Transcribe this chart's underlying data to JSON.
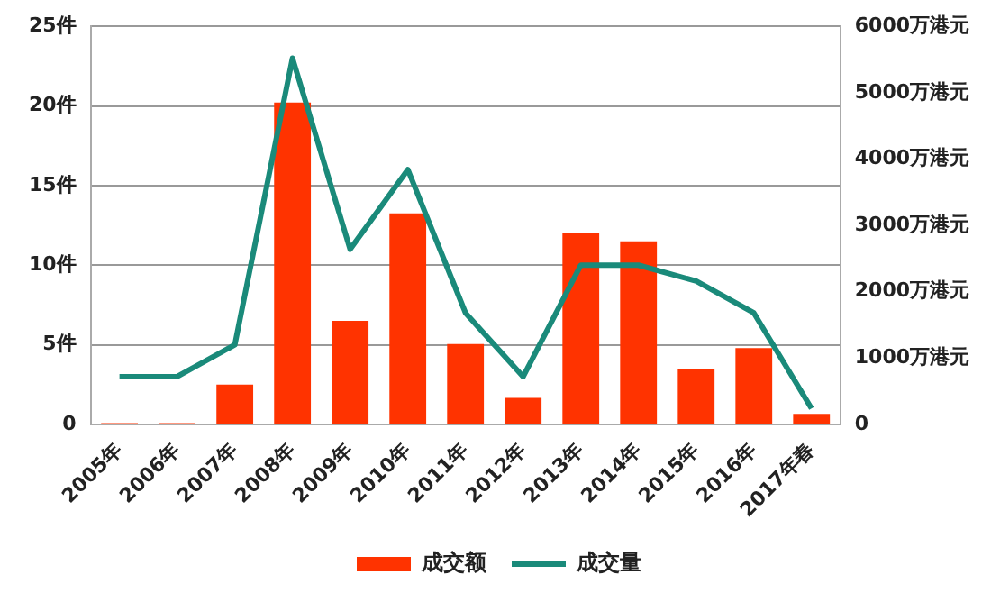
{
  "chart_data": {
    "type": "bar",
    "categories": [
      "2005年",
      "2006年",
      "2007年",
      "2008年",
      "2009年",
      "2010年",
      "2011年",
      "2012年",
      "2013年",
      "2014年",
      "2015年",
      "2016年",
      "2017年春"
    ],
    "series": [
      {
        "name": "成交额",
        "axis": "y2",
        "color": "#ff3300",
        "values": [
          20,
          20,
          600,
          4850,
          1560,
          3180,
          1210,
          400,
          2890,
          2760,
          830,
          1150,
          160
        ]
      },
      {
        "name": "成交量",
        "type": "line",
        "axis": "y",
        "color": "#1a8a7a",
        "values": [
          3,
          3,
          5,
          23,
          11,
          16,
          7,
          3,
          10,
          10,
          9,
          7,
          1
        ]
      }
    ],
    "ylim": [
      0,
      25
    ],
    "yticks": [
      0,
      {
        "value": 5,
        "label": "5件"
      },
      {
        "value": 10,
        "label": "10件"
      },
      {
        "value": 15,
        "label": "15件"
      },
      {
        "value": 20,
        "label": "20件"
      },
      {
        "value": 25,
        "label": "25件"
      }
    ],
    "y2lim": [
      0,
      6000
    ],
    "y2ticks": [
      0,
      {
        "value": 1000,
        "label": "1000万港元"
      },
      {
        "value": 2000,
        "label": "2000万港元"
      },
      {
        "value": 3000,
        "label": "3000万港元"
      },
      {
        "value": 4000,
        "label": "4000万港元"
      },
      {
        "value": 5000,
        "label": "5000万港元"
      },
      {
        "value": 6000,
        "label": "6000万港元"
      }
    ],
    "grid": "y",
    "legend": "bottom",
    "marker": "none"
  }
}
